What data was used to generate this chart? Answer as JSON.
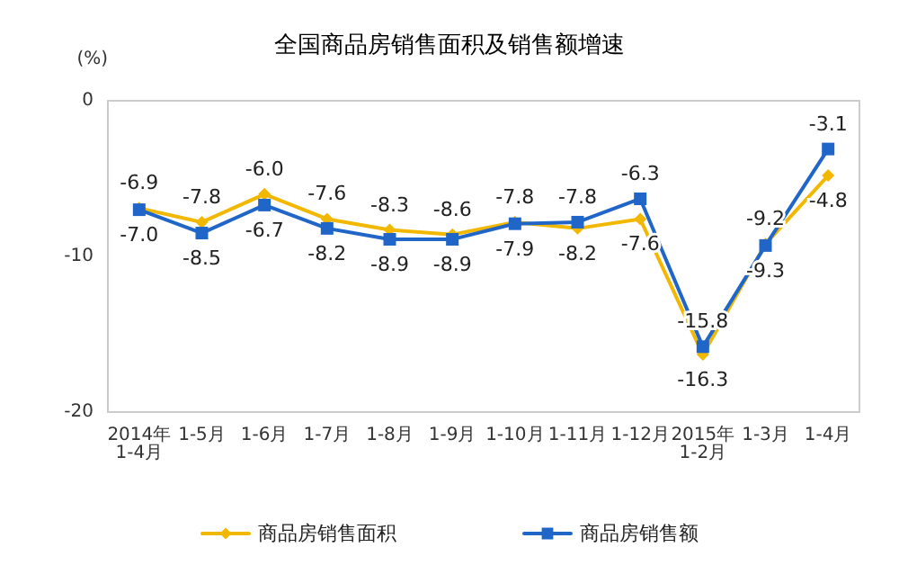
{
  "chart_data": {
    "type": "line",
    "title": "全国商品房销售面积及销售额增速",
    "ylabel": "(%)",
    "categories": [
      "2014年\n1-4月",
      "1-5月",
      "1-6月",
      "1-7月",
      "1-8月",
      "1-9月",
      "1-10月",
      "1-11月",
      "1-12月",
      "2015年\n1-2月",
      "1-3月",
      "1-4月"
    ],
    "series": [
      {
        "name": "商品房销售面积",
        "color": "#f2b800",
        "marker": "diamond",
        "values": [
          -6.9,
          -7.8,
          -6.0,
          -7.6,
          -8.3,
          -8.6,
          -7.8,
          -8.2,
          -7.6,
          -16.3,
          -9.2,
          -4.8
        ],
        "value_labels": [
          "-6.9",
          "-7.8",
          "-6.0",
          "-7.6",
          "-8.3",
          "-8.6",
          "-7.8",
          "-8.2",
          "-7.6",
          "-16.3",
          "-9.2",
          "-4.8"
        ]
      },
      {
        "name": "商品房销售额",
        "color": "#1f66c8",
        "marker": "square",
        "values": [
          -7.0,
          -8.5,
          -6.7,
          -8.2,
          -8.9,
          -8.9,
          -7.9,
          -7.8,
          -6.3,
          -15.8,
          -9.3,
          -3.1
        ],
        "value_labels": [
          "-7.0",
          "-8.5",
          "-6.7",
          "-8.2",
          "-8.9",
          "-8.9",
          "-7.9",
          "-7.8",
          "-6.3",
          "-15.8",
          "-9.3",
          "-3.1"
        ]
      }
    ],
    "ylim": [
      -20,
      0
    ],
    "yticks": [
      -20,
      -10,
      0
    ],
    "grid": false,
    "legend": "bottom"
  }
}
